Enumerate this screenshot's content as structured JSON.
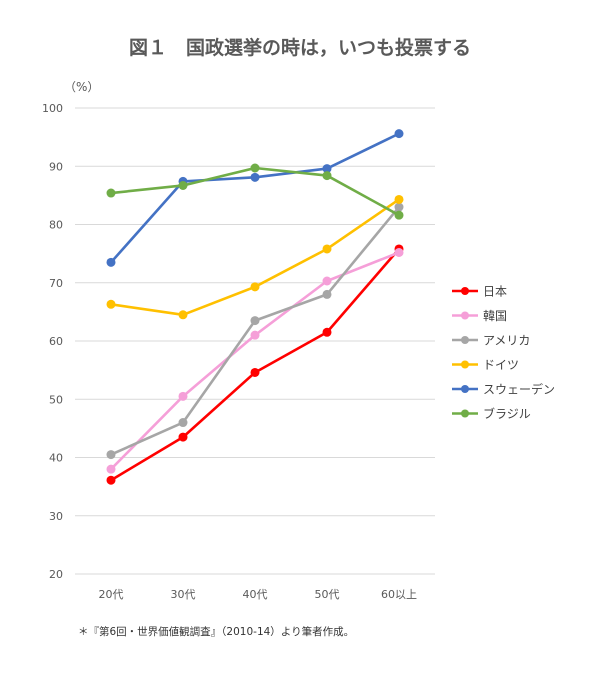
{
  "chart_data": {
    "type": "line",
    "title": "図１　国政選挙の時は，いつも投票する",
    "ylabel": "（%）",
    "xlabel": "",
    "categories": [
      "20代",
      "30代",
      "40代",
      "50代",
      "60以上"
    ],
    "ylim": [
      20,
      100
    ],
    "yticks": [
      20,
      30,
      40,
      50,
      60,
      70,
      80,
      90,
      100
    ],
    "grid": true,
    "legend_position": "right",
    "series": [
      {
        "name": "日本",
        "color": "#ff0000",
        "values": [
          36.1,
          43.5,
          54.6,
          61.5,
          75.8
        ]
      },
      {
        "name": "韓国",
        "color": "#f59fd8",
        "values": [
          38.0,
          50.5,
          61.0,
          70.3,
          75.2
        ]
      },
      {
        "name": "アメリカ",
        "color": "#a6a6a6",
        "values": [
          40.5,
          46.0,
          63.5,
          68.0,
          83.0
        ]
      },
      {
        "name": "ドイツ",
        "color": "#ffc000",
        "values": [
          66.3,
          64.5,
          69.3,
          75.8,
          84.3
        ]
      },
      {
        "name": "スウェーデン",
        "color": "#4472c4",
        "values": [
          73.5,
          87.4,
          88.1,
          89.6,
          95.6
        ]
      },
      {
        "name": "ブラジル",
        "color": "#70ad47",
        "values": [
          85.4,
          86.7,
          89.7,
          88.4,
          81.6
        ]
      }
    ],
    "footnote": "＊『第6回・世界価値観調査』（2010-14）より筆者作成。"
  }
}
